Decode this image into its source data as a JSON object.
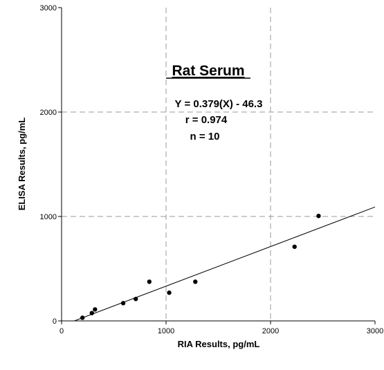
{
  "chart_data": {
    "type": "scatter",
    "title": "Rat Serum",
    "xlabel": "RIA Results, pg/mL",
    "ylabel": "ELISA Results, pg/mL",
    "xlim": [
      0,
      3000
    ],
    "ylim": [
      0,
      3000
    ],
    "x_ticks": [
      "0",
      "1000",
      "2000",
      "3000"
    ],
    "y_ticks": [
      "0",
      "1000",
      "2000",
      "3000"
    ],
    "grid": "dashed at x=1000, x=2000, y=1000, y=2000",
    "annotations": [
      "Y = 0.379(X) - 46.3",
      "r = 0.974",
      "n = 10"
    ],
    "regression": {
      "slope": 0.379,
      "intercept": -46.3,
      "x_range": [
        122,
        3000
      ]
    },
    "points": [
      {
        "x": 200,
        "y": 30
      },
      {
        "x": 290,
        "y": 75
      },
      {
        "x": 320,
        "y": 110
      },
      {
        "x": 590,
        "y": 170
      },
      {
        "x": 710,
        "y": 210
      },
      {
        "x": 840,
        "y": 375
      },
      {
        "x": 1030,
        "y": 270
      },
      {
        "x": 1280,
        "y": 375
      },
      {
        "x": 2230,
        "y": 710
      },
      {
        "x": 2460,
        "y": 1005
      }
    ]
  }
}
